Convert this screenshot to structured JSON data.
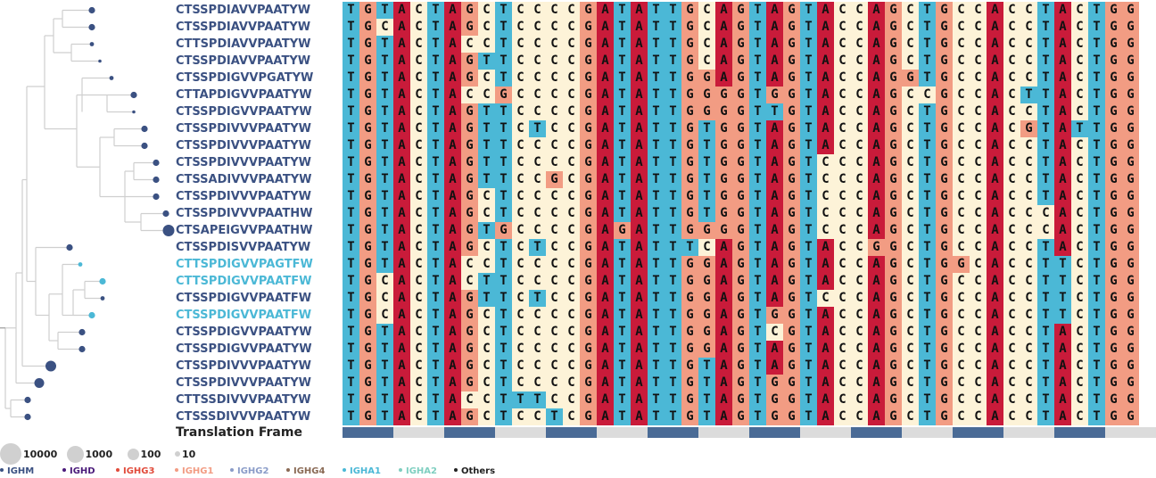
{
  "colors": {
    "A": "#c91b3a",
    "C": "#fdf3d8",
    "G": "#f29c83",
    "T": "#4bb8d6",
    "frame_on": "#4a6b96",
    "frame_off": "#dcdcdc",
    "tree_line": "#cfcfcf",
    "tree_line_dark": "#9a9a9a"
  },
  "rows": [
    {
      "label": "CTSSPDIAVVPAATYW",
      "color": "#3b5182",
      "seq": "TGTACTAGCTCCCCGATATTGCAGTAGTACCAGCTGCCACCTACTGG",
      "bubble": 3.6
    },
    {
      "label": "CTSSPDIAVVPAATYW",
      "color": "#3b5182",
      "seq": "TGCACTAGCTCCCCGATATTGCAGTAGTACCAGCTGCCACCTACTGG",
      "bubble": 3.6
    },
    {
      "label": "CTTSPDIAVVPAATYW",
      "color": "#3b5182",
      "seq": "TGTACTACCTCCCCGATATTGCAGTAGTACCAGCTGCCACCTACTGG",
      "bubble": 2.4
    },
    {
      "label": "CTSSPDIAVVPAATYW",
      "color": "#3b5182",
      "seq": "TGTACTAGTTCCCCGATATTGCAGTAGTACCAGCTGCCACCTACTGG",
      "bubble": 1.8
    },
    {
      "label": "CTSSPDIGVVPGATYW",
      "color": "#3b5182",
      "seq": "TGTACTAGCTCCCCGATATTGGAGTAGTACCAGGTGCCACCTACTGG",
      "bubble": 2.4
    },
    {
      "label": "CTTAPDIGVVPAATYW",
      "color": "#3b5182",
      "seq": "TGTACTACCGCCCCGATATTGGGGTGGTACCAGCCGCCACTTACTGG",
      "bubble": 3.6
    },
    {
      "label": "CTSSPDIGVVPAATYW",
      "color": "#3b5182",
      "seq": "TGTACTAGTTCCCCGATATTGGGGTTGTACCAGCTGCCACCTACTGG",
      "bubble": 1.8
    },
    {
      "label": "CTSSPDIVVVPAATYW",
      "color": "#3b5182",
      "seq": "TGTACTAGTTCTCCGATATTGTGGTAGTACCAGCTGCCACGTATTGG",
      "bubble": 3.6
    },
    {
      "label": "CTSSPDIVVVPAATYW",
      "color": "#3b5182",
      "seq": "TGTACTAGTTCCCCGATATTGTGGTAGTACCAGCTGCCACCTACTGG",
      "bubble": 3.6
    },
    {
      "label": "CTSSPDIVVVPAATYW",
      "color": "#3b5182",
      "seq": "TGTACTAGTTCCCCGATATTGTGGTAGTCCCAGCTGCCACCTACTGG",
      "bubble": 3.6
    },
    {
      "label": "CTSSADIVVVPAATYW",
      "color": "#3b5182",
      "seq": "TGTACTAGTTCCGCGATATTGTGGTAGTCCCAGCTGCCACCTACTGG",
      "bubble": 3.6
    },
    {
      "label": "CTSSPDIVVVPAATYW",
      "color": "#3b5182",
      "seq": "TGTACTAGCTCCCCGATATTGTGGTAGTCCCAGCTGCCACCTACTGG",
      "bubble": 3.6
    },
    {
      "label": "CTSSPDIVVVPAATHW",
      "color": "#3b5182",
      "seq": "TGTACTAGCTCCCCGATATTGTGGTAGTCCCAGCTGCCACCCACTGG",
      "bubble": 3.6
    },
    {
      "label": "CTSAPEIGVVPAATHW",
      "color": "#3b5182",
      "seq": "TGTACTAGTGCCCCGAGATTGGGGTAGTCCCAGCTGCCACCCACTGG",
      "bubble": 6.5
    },
    {
      "label": "CTSSPDISVVPAATYW",
      "color": "#3b5182",
      "seq": "TGTACTAGCTCTCCGATATTTCAGTAGTACCGGCTGCCACCTACTGG",
      "bubble": 3.6
    },
    {
      "label": "CTTSPDIGVVPAGTFW",
      "color": "#4bb8d6",
      "seq": "TGTACTACCTCCCCGATATTGGAGTAGTACCAGCTGGCACCTTCTGG",
      "bubble": 2.4
    },
    {
      "label": "CTTSPDIGVVPAATFW",
      "color": "#4bb8d6",
      "seq": "TGCACTACTTCCCCGATATTGGAGTAGTACCAGCTGCCACCTTCTGG",
      "bubble": 3.6
    },
    {
      "label": "CTSSPDIGVVPAATFW",
      "color": "#3b5182",
      "seq": "TGCACTAGTTCTCCGATATTGGAGTAGTCCCAGCTGCCACCTTCTGG",
      "bubble": 2.4
    },
    {
      "label": "CTSSPDIGVVPAATFW",
      "color": "#4bb8d6",
      "seq": "TGCACTAGCTCCCCGATATTGGAGTGGTACCAGCTGCCACCTTCTGG",
      "bubble": 3.6
    },
    {
      "label": "CTSSPDIGVVPAATYW",
      "color": "#3b5182",
      "seq": "TGTACTAGCTCCCCGATATTGGAGTCGTACCAGCTGCCACCTACTGG",
      "bubble": 3.6
    },
    {
      "label": "CTSSPDIGVVPAATYW",
      "color": "#3b5182",
      "seq": "TGTACTAGCTCCCCGATATTGGAGTAGTACCAGCTGCCACCTACTGG",
      "bubble": 3.6
    },
    {
      "label": "CTSSPDIVVVPAATYW",
      "color": "#3b5182",
      "seq": "TGTACTAGCTCCCCGATATTGTAGTAGTACCAGCTGCCACCTACTGG",
      "bubble": 6.0
    },
    {
      "label": "CTSSPDIVVVPAATYW",
      "color": "#3b5182",
      "seq": "TGTACTAGCTCCCCGATATTGTAGTGGTACCAGCTGCCACCTACTGG",
      "bubble": 5.5
    },
    {
      "label": "CTTSSDIVVVPAATYW",
      "color": "#3b5182",
      "seq": "TGTACTACCTTTCCGATATTGTAGTGGTACCAGCTGCCACCTACTGG",
      "bubble": 3.6
    },
    {
      "label": "CTSSSDIVVVPAATYW",
      "color": "#3b5182",
      "seq": "TGTACTAGCTCCTCGATATTGTAGTGGTACCAGCTGCCACCTACTGG",
      "bubble": 3.6
    }
  ],
  "translation_frame": {
    "label": "Translation Frame",
    "codon_on": [
      true,
      false,
      true,
      false,
      true,
      false,
      true,
      false,
      true,
      false,
      true,
      false,
      true,
      false,
      true,
      false
    ]
  },
  "size_legend": [
    {
      "label": "10000",
      "radius": 12
    },
    {
      "label": "1000",
      "radius": 9.5
    },
    {
      "label": "100",
      "radius": 6.5
    },
    {
      "label": "10",
      "radius": 3
    }
  ],
  "isotype_legend": [
    {
      "label": "IGHM",
      "color": "#3b5182"
    },
    {
      "label": "IGHD",
      "color": "#4a1a7a"
    },
    {
      "label": "IGHG3",
      "color": "#e14b3b"
    },
    {
      "label": "IGHG1",
      "color": "#f29c83"
    },
    {
      "label": "IGHG2",
      "color": "#8a9cc8"
    },
    {
      "label": "IGHG4",
      "color": "#8a6a55"
    },
    {
      "label": "IGHA1",
      "color": "#4bb8d6"
    },
    {
      "label": "IGHA2",
      "color": "#7fcfc0"
    },
    {
      "label": "Others",
      "color": "#222222"
    }
  ]
}
